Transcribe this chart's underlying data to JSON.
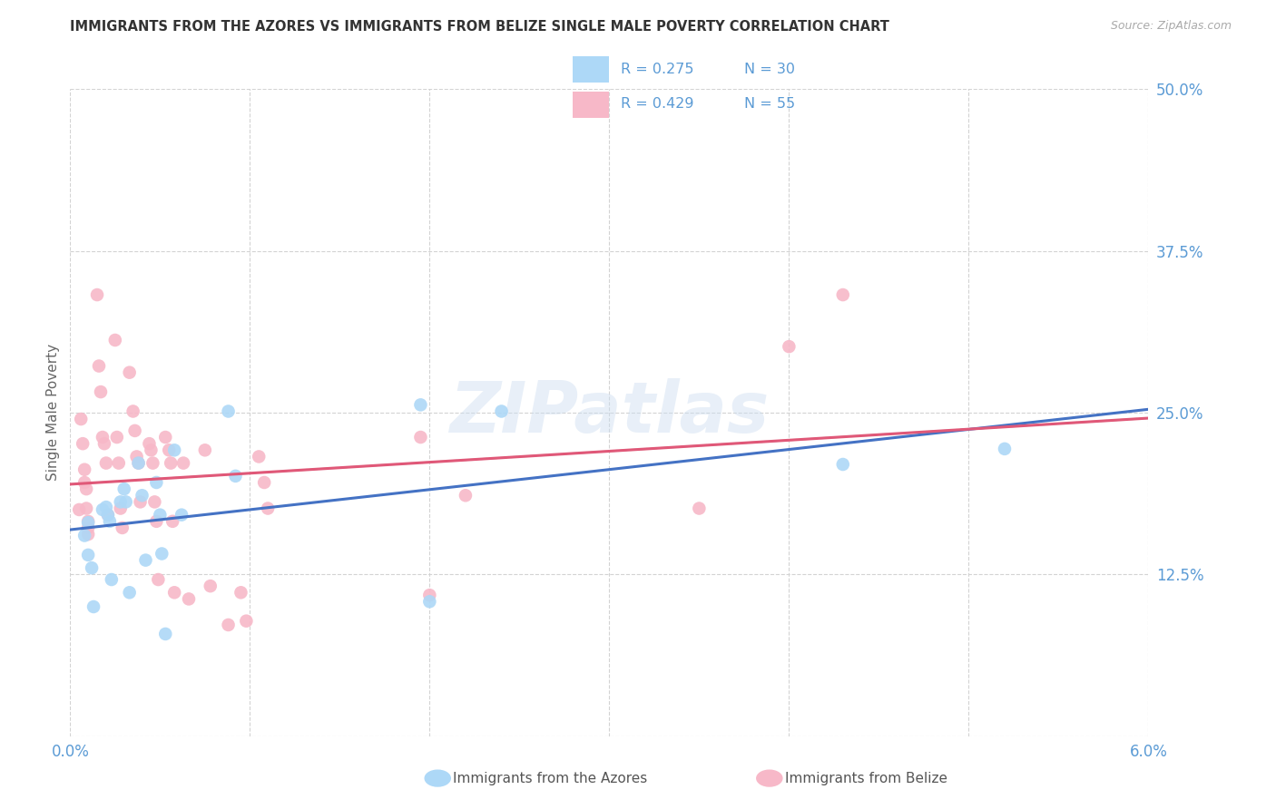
{
  "title": "IMMIGRANTS FROM THE AZORES VS IMMIGRANTS FROM BELIZE SINGLE MALE POVERTY CORRELATION CHART",
  "source": "Source: ZipAtlas.com",
  "ylabel": "Single Male Poverty",
  "xlim": [
    0.0,
    0.06
  ],
  "ylim": [
    0.0,
    0.5
  ],
  "xticks": [
    0.0,
    0.01,
    0.02,
    0.03,
    0.04,
    0.05,
    0.06
  ],
  "xtick_labels": [
    "0.0%",
    "",
    "",
    "",
    "",
    "",
    "6.0%"
  ],
  "yticks": [
    0.0,
    0.125,
    0.25,
    0.375,
    0.5
  ],
  "ytick_labels": [
    "",
    "12.5%",
    "25.0%",
    "37.5%",
    "50.0%"
  ],
  "axis_color": "#5b9bd5",
  "grid_color": "#d3d3d3",
  "watermark": "ZIPatlas",
  "legend_R1": "R = 0.275",
  "legend_N1": "N = 30",
  "legend_R2": "R = 0.429",
  "legend_N2": "N = 55",
  "series1_label": "Immigrants from the Azores",
  "series2_label": "Immigrants from Belize",
  "series1_color": "#add8f7",
  "series2_color": "#f7b8c8",
  "line1_color": "#4472c4",
  "line2_color": "#e05878",
  "dash_color": "#c8c8c8",
  "azores_x": [
    0.0008,
    0.001,
    0.001,
    0.0012,
    0.0013,
    0.0018,
    0.002,
    0.0021,
    0.0022,
    0.0023,
    0.0028,
    0.003,
    0.0031,
    0.0033,
    0.0038,
    0.004,
    0.0042,
    0.0048,
    0.005,
    0.0051,
    0.0053,
    0.0058,
    0.0062,
    0.0088,
    0.0092,
    0.0195,
    0.02,
    0.024,
    0.043,
    0.052
  ],
  "azores_y": [
    0.155,
    0.165,
    0.14,
    0.13,
    0.1,
    0.175,
    0.177,
    0.171,
    0.166,
    0.121,
    0.181,
    0.191,
    0.181,
    0.111,
    0.211,
    0.186,
    0.136,
    0.196,
    0.171,
    0.141,
    0.079,
    0.221,
    0.171,
    0.251,
    0.201,
    0.256,
    0.104,
    0.251,
    0.21,
    0.222
  ],
  "belize_x": [
    0.0005,
    0.0006,
    0.0007,
    0.0008,
    0.0008,
    0.0009,
    0.0009,
    0.001,
    0.001,
    0.001,
    0.0015,
    0.0016,
    0.0017,
    0.0018,
    0.0019,
    0.002,
    0.0021,
    0.0025,
    0.0026,
    0.0027,
    0.0028,
    0.0029,
    0.0033,
    0.0035,
    0.0036,
    0.0037,
    0.0038,
    0.0039,
    0.0044,
    0.0045,
    0.0046,
    0.0047,
    0.0048,
    0.0049,
    0.0053,
    0.0055,
    0.0056,
    0.0057,
    0.0058,
    0.0063,
    0.0066,
    0.0075,
    0.0078,
    0.0088,
    0.0095,
    0.0098,
    0.0105,
    0.0108,
    0.011,
    0.0195,
    0.02,
    0.022,
    0.035,
    0.04,
    0.043
  ],
  "belize_y": [
    0.175,
    0.245,
    0.226,
    0.206,
    0.196,
    0.191,
    0.176,
    0.166,
    0.161,
    0.156,
    0.341,
    0.286,
    0.266,
    0.231,
    0.226,
    0.211,
    0.171,
    0.306,
    0.231,
    0.211,
    0.176,
    0.161,
    0.281,
    0.251,
    0.236,
    0.216,
    0.211,
    0.181,
    0.226,
    0.221,
    0.211,
    0.181,
    0.166,
    0.121,
    0.231,
    0.221,
    0.211,
    0.166,
    0.111,
    0.211,
    0.106,
    0.221,
    0.116,
    0.086,
    0.111,
    0.089,
    0.216,
    0.196,
    0.176,
    0.231,
    0.109,
    0.186,
    0.176,
    0.301,
    0.341
  ]
}
